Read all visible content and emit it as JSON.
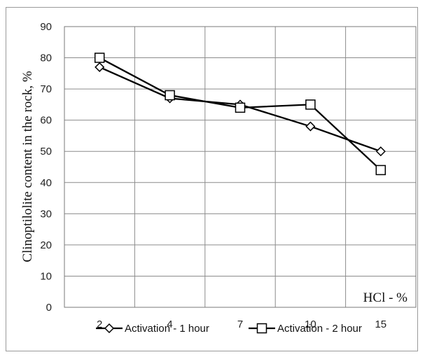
{
  "chart_data": {
    "type": "line",
    "title": "",
    "xlabel": "HCl - %",
    "ylabel": "Clinoptilolite content in the rock, %",
    "categories": [
      "2",
      "4",
      "7",
      "10",
      "15"
    ],
    "ylim": [
      0,
      90
    ],
    "yticks": [
      0,
      10,
      20,
      30,
      40,
      50,
      60,
      70,
      80,
      90
    ],
    "grid": true,
    "legend_position": "bottom",
    "series": [
      {
        "name": "Activation - 1 hour",
        "marker": "diamond",
        "values": [
          77,
          67,
          65,
          58,
          50
        ]
      },
      {
        "name": "Activation - 2 hour",
        "marker": "square",
        "values": [
          80,
          68,
          64,
          65,
          44
        ]
      }
    ]
  }
}
